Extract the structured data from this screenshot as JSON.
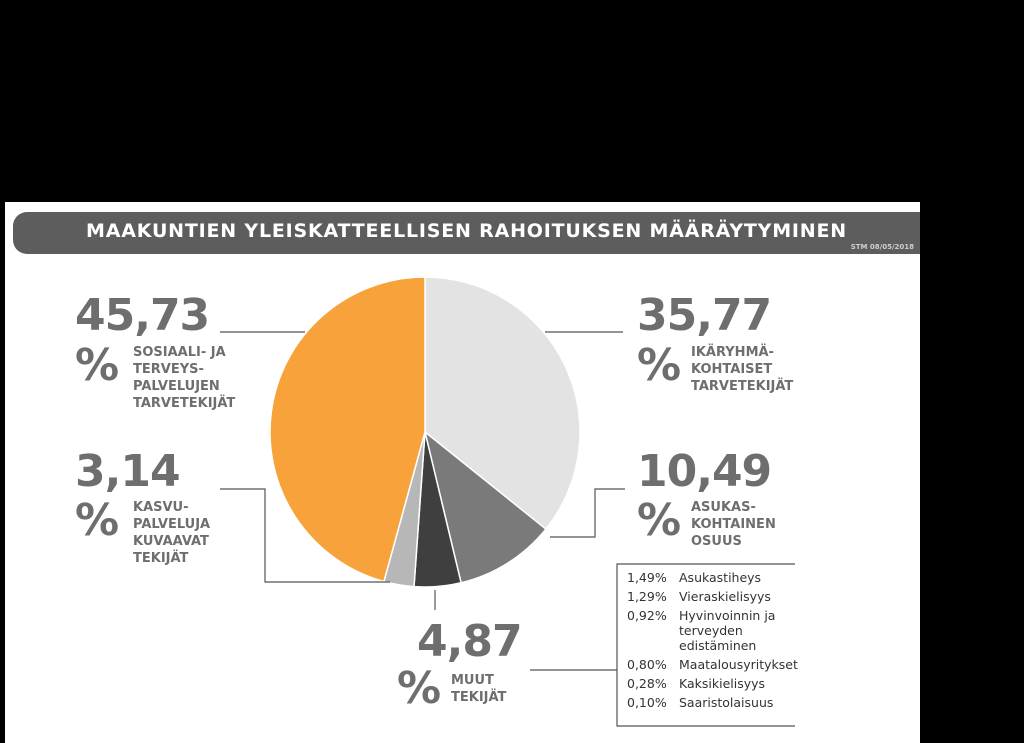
{
  "title": "MAAKUNTIEN YLEISKATTEELLISEN RAHOITUKSEN MÄÄRÄYTYMINEN",
  "stamp": "STM 08/05/2018",
  "chart_data": {
    "type": "pie",
    "slices": [
      {
        "value": 35.77,
        "label": "35,77",
        "caption": "IKÄRYHMÄ-\nKOHTAISET\nTARVETEKIJÄT",
        "color": "#e3e3e3"
      },
      {
        "value": 10.49,
        "label": "10,49",
        "caption": "ASUKAS-\nKOHTAINEN\nOSUUS",
        "color": "#7a7a7a"
      },
      {
        "value": 4.87,
        "label": "4,87",
        "caption": "MUUT\nTEKIJÄT",
        "color": "#3f3f3f"
      },
      {
        "value": 3.14,
        "label": "3,14",
        "caption": "KASVU-\nPALVELUJA\nKUVAAVAT\nTEKIJÄT",
        "color": "#b7b7b7"
      },
      {
        "value": 45.73,
        "label": "45,73",
        "caption": "SOSIAALI- JA\nTERVEYS-\nPALVELUJEN\nTARVETEKIJÄT",
        "color": "#f7a23b"
      }
    ],
    "percent_symbol": "%",
    "breakdown": [
      {
        "value": "1,49%",
        "label": "Asukastiheys"
      },
      {
        "value": "1,29%",
        "label": "Vieraskielisyys"
      },
      {
        "value": "0,92%",
        "label": "Hyvinvoinnin ja\nterveyden\nedistäminen"
      },
      {
        "value": "0,80%",
        "label": "Maatalousyritykset"
      },
      {
        "value": "0,28%",
        "label": "Kaksikielisyys"
      },
      {
        "value": "0,10%",
        "label": "Saaristolaisuus"
      }
    ]
  }
}
